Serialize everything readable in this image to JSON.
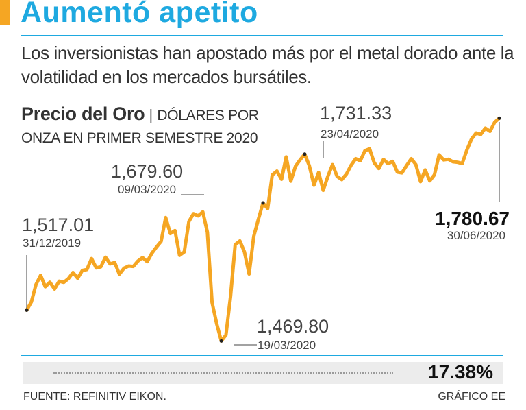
{
  "header": {
    "title": "Aumentó apetito",
    "subtitle": "Los inversionistas han apostado más por el metal dorado ante la volatilidad en los mercados bursátiles."
  },
  "chart_heading": {
    "bold": "Precio del Oro",
    "separator": "|",
    "unit": "DÓLARES POR ONZA EN PRIMER SEMESTRE 2020"
  },
  "chart_data": {
    "type": "line",
    "series": [
      {
        "values": [
          1517.01,
          1528.3,
          1552.1,
          1564.8,
          1549.2,
          1555.4,
          1546.1,
          1556.8,
          1555.2,
          1560.4,
          1568.7,
          1560.9,
          1571.5,
          1572.8,
          1587.9,
          1575.1,
          1576.5,
          1589.8,
          1580.6,
          1582.4,
          1566.4,
          1574.7,
          1577.6,
          1577.1,
          1584.5,
          1589.3,
          1583.6,
          1595.1,
          1603.6,
          1611.4,
          1644.2,
          1622.3,
          1626.3,
          1592.3,
          1596.9,
          1638.8,
          1649.5,
          1646.6,
          1651.9,
          1624.1,
          1527.7,
          1498.2,
          1474.6,
          1482.9,
          1535.8,
          1607.0,
          1612.1,
          1597.0,
          1566.7,
          1618.5,
          1641.7,
          1664.3,
          1656.6,
          1702.7,
          1708.1,
          1696.8,
          1727.6,
          1694.1,
          1714.6,
          1723.4,
          1731.33,
          1715.4,
          1688.7,
          1706.2,
          1681.6,
          1700.7,
          1716.9,
          1700.7,
          1696.3,
          1703.9,
          1715.9,
          1725.1,
          1722.2,
          1736.0,
          1738.7,
          1719.5,
          1711.6,
          1724.1,
          1718.3,
          1721.4,
          1706.7,
          1705.6,
          1715.7,
          1725.1,
          1717.0,
          1693.6,
          1709.7,
          1694.6,
          1702.9,
          1730.3,
          1723.4,
          1724.3,
          1720.9,
          1720.1,
          1718.5,
          1736.8,
          1752.0,
          1760.3,
          1758.4,
          1767.0,
          1762.6,
          1774.9,
          1780.67
        ]
      }
    ],
    "annotations": [
      {
        "value": "1,517.01",
        "date": "31/12/2019"
      },
      {
        "value": "1,679.60",
        "date": "09/03/2020"
      },
      {
        "value": "1,469.80",
        "date": "19/03/2020"
      },
      {
        "value": "1,731.33",
        "date": "23/04/2020"
      },
      {
        "value": "1,780.67",
        "date": "30/06/2020"
      }
    ],
    "line_color": "#f5a623",
    "grid": false
  },
  "total": {
    "value": "17.38%"
  },
  "footer": {
    "source": "FUENTE: REFINITIV EIKON.",
    "credit": "GRÁFICO EE"
  },
  "colors": {
    "title": "#1ea9e0",
    "accent": "#f5a623",
    "rule": "#1ea9e0"
  }
}
